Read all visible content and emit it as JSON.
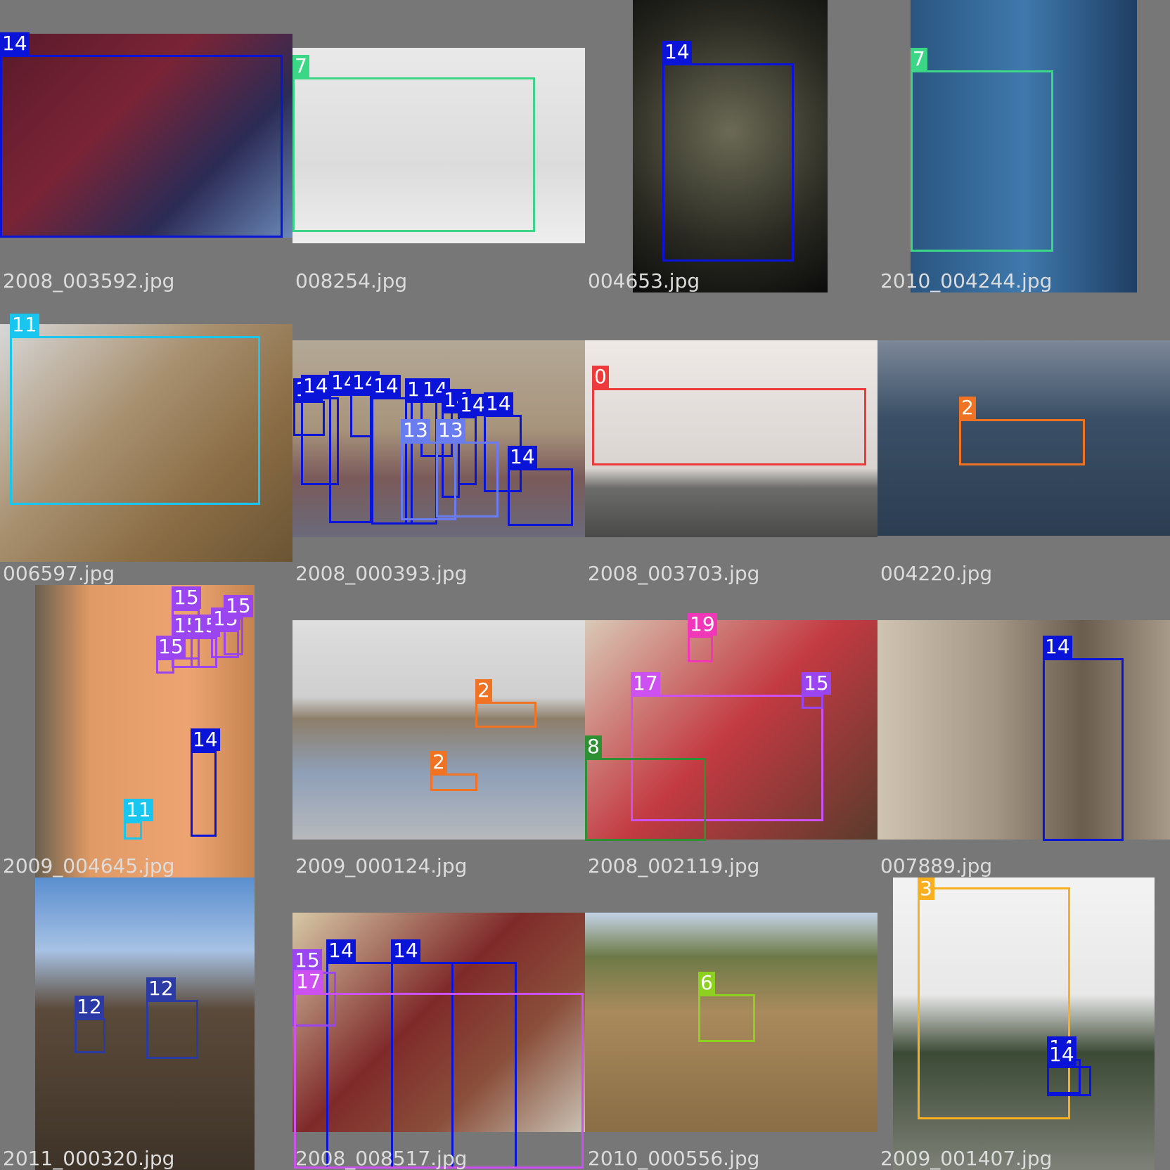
{
  "grid": {
    "cells": [
      {
        "filename": "2008_003592.jpg",
        "labels": [
          {
            "id": "14",
            "color": "#0a14d8"
          }
        ]
      },
      {
        "filename": "008254.jpg",
        "labels": [
          {
            "id": "7",
            "color": "#3cd687"
          }
        ]
      },
      {
        "filename": "004653.jpg",
        "labels": [
          {
            "id": "14",
            "color": "#0a14d8"
          }
        ]
      },
      {
        "filename": "2010_004244.jpg",
        "labels": [
          {
            "id": "7",
            "color": "#3cd687"
          }
        ]
      },
      {
        "filename": "006597.jpg",
        "labels": [
          {
            "id": "11",
            "color": "#19c6f0"
          }
        ]
      },
      {
        "filename": "2008_000393.jpg",
        "labels": [
          {
            "id": "14",
            "color": "#0a14d8"
          },
          {
            "id": "14",
            "color": "#0a14d8"
          },
          {
            "id": "14",
            "color": "#0a14d8"
          },
          {
            "id": "14",
            "color": "#0a14d8"
          },
          {
            "id": "14",
            "color": "#0a14d8"
          },
          {
            "id": "14",
            "color": "#0a14d8"
          },
          {
            "id": "14",
            "color": "#0a14d8"
          },
          {
            "id": "14",
            "color": "#0a14d8"
          },
          {
            "id": "14",
            "color": "#0a14d8"
          },
          {
            "id": "14",
            "color": "#0a14d8"
          },
          {
            "id": "13",
            "color": "#6a7df0"
          },
          {
            "id": "13",
            "color": "#6a7df0"
          },
          {
            "id": "14",
            "color": "#0a14d8"
          }
        ]
      },
      {
        "filename": "2008_003703.jpg",
        "labels": [
          {
            "id": "0",
            "color": "#ee3a3a"
          }
        ]
      },
      {
        "filename": "004220.jpg",
        "labels": [
          {
            "id": "2",
            "color": "#f07323"
          }
        ]
      },
      {
        "filename": "2009_004645.jpg",
        "labels": [
          {
            "id": "15",
            "color": "#9b45f0"
          },
          {
            "id": "15",
            "color": "#9b45f0"
          },
          {
            "id": "15",
            "color": "#9b45f0"
          },
          {
            "id": "15",
            "color": "#9b45f0"
          },
          {
            "id": "15",
            "color": "#9b45f0"
          },
          {
            "id": "15",
            "color": "#9b45f0"
          },
          {
            "id": "14",
            "color": "#0a14d8"
          },
          {
            "id": "11",
            "color": "#19c6f0"
          }
        ]
      },
      {
        "filename": "2009_000124.jpg",
        "labels": [
          {
            "id": "2",
            "color": "#f07323"
          },
          {
            "id": "2",
            "color": "#f07323"
          }
        ]
      },
      {
        "filename": "2008_002119.jpg",
        "labels": [
          {
            "id": "19",
            "color": "#f037b8"
          },
          {
            "id": "17",
            "color": "#cd50f0"
          },
          {
            "id": "15",
            "color": "#9b45f0"
          },
          {
            "id": "8",
            "color": "#2e8f33"
          }
        ]
      },
      {
        "filename": "007889.jpg",
        "labels": [
          {
            "id": "14",
            "color": "#0a14d8"
          }
        ]
      },
      {
        "filename": "2011_000320.jpg",
        "labels": [
          {
            "id": "12",
            "color": "#2b3aa5"
          },
          {
            "id": "12",
            "color": "#2b3aa5"
          }
        ]
      },
      {
        "filename": "2008_008517.jpg",
        "labels": [
          {
            "id": "14",
            "color": "#0a14d8"
          },
          {
            "id": "14",
            "color": "#0a14d8"
          },
          {
            "id": "15",
            "color": "#9b45f0"
          },
          {
            "id": "17",
            "color": "#cd50f0"
          }
        ]
      },
      {
        "filename": "2010_000556.jpg",
        "labels": [
          {
            "id": "6",
            "color": "#8ed022"
          }
        ]
      },
      {
        "filename": "2009_001407.jpg",
        "labels": [
          {
            "id": "3",
            "color": "#f8b021"
          },
          {
            "id": "14",
            "color": "#0a14d8"
          },
          {
            "id": "14",
            "color": "#0a14d8"
          }
        ]
      }
    ]
  }
}
